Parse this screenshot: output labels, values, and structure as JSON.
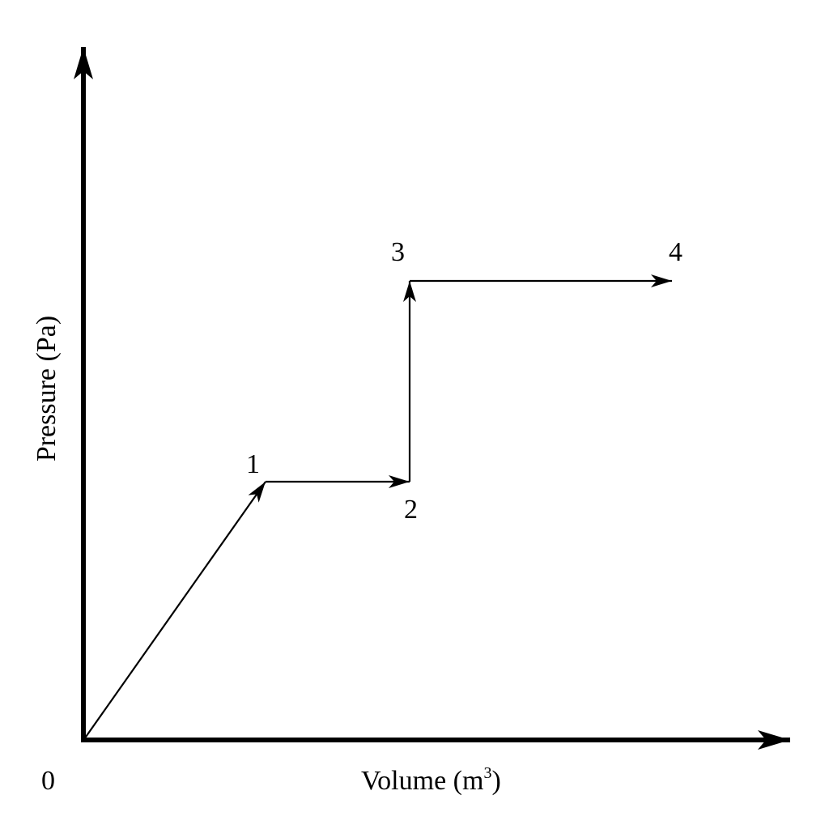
{
  "axes": {
    "x_label": "Volume (m",
    "x_label_exponent": "3",
    "x_label_close": ")",
    "y_label": "Pressure (Pa)",
    "origin_label": "0"
  },
  "states": [
    {
      "label": "1"
    },
    {
      "label": "2"
    },
    {
      "label": "3"
    },
    {
      "label": "4"
    }
  ],
  "processes": [
    {
      "from": "0",
      "to": "1"
    },
    {
      "from": "1",
      "to": "2"
    },
    {
      "from": "2",
      "to": "3"
    },
    {
      "from": "3",
      "to": "4"
    }
  ],
  "colors": {
    "ink": "#000000",
    "background": "#ffffff"
  }
}
